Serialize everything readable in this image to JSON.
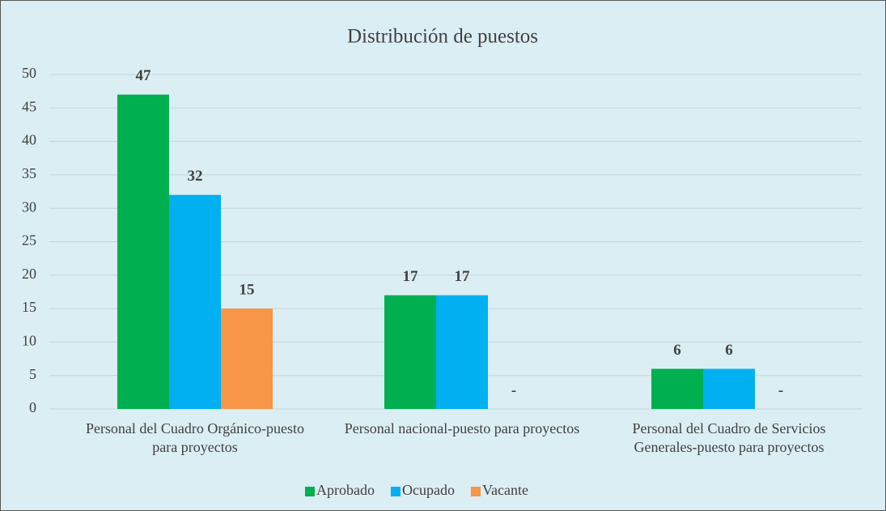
{
  "chart_data": {
    "type": "bar",
    "title": "Distribución de puestos",
    "categories": [
      "Personal del Cuadro Orgánico-puesto para proyectos",
      "Personal nacional-puesto para proyectos",
      "Personal del Cuadro de Servicios Generales-puesto para proyectos"
    ],
    "series": [
      {
        "name": "Aprobado",
        "color": "#00b050",
        "values": [
          47,
          17,
          6
        ],
        "value_labels": [
          "47",
          "17",
          "6"
        ]
      },
      {
        "name": "Ocupado",
        "color": "#00b0f0",
        "values": [
          32,
          17,
          6
        ],
        "value_labels": [
          "32",
          "17",
          "6"
        ]
      },
      {
        "name": "Vacante",
        "color": "#f79646",
        "values": [
          15,
          0,
          0
        ],
        "value_labels": [
          "15",
          "-",
          "-"
        ]
      }
    ],
    "ylim": [
      0,
      50
    ],
    "yticks": [
      0,
      5,
      10,
      15,
      20,
      25,
      30,
      35,
      40,
      45,
      50
    ],
    "grid": true,
    "legend": "bottom"
  }
}
